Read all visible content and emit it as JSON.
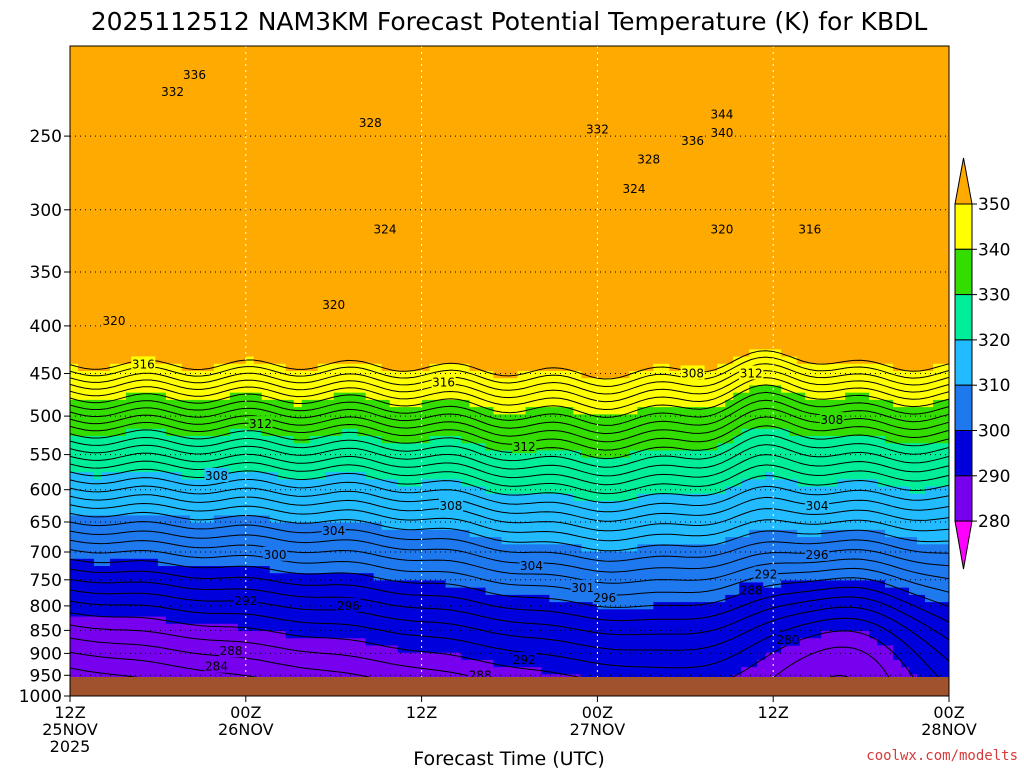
{
  "chart_data": {
    "type": "contour",
    "title": "2025112512 NAM3KM Forecast Potential Temperature (K) for KBDL",
    "xlabel": "Forecast Time (UTC)",
    "ylabel": "",
    "y_axis": {
      "ticks": [
        "250",
        "300",
        "350",
        "400",
        "450",
        "500",
        "550",
        "600",
        "650",
        "700",
        "750",
        "800",
        "850",
        "900",
        "950",
        "1000"
      ],
      "range": [
        200,
        1000
      ],
      "scale": "log"
    },
    "x_axis": {
      "ticks": [
        {
          "line1": "12Z",
          "line2": "25NOV",
          "line3": "2025",
          "hour": 0
        },
        {
          "line1": "00Z",
          "line2": "26NOV",
          "line3": "",
          "hour": 12
        },
        {
          "line1": "12Z",
          "line2": "",
          "line3": "",
          "hour": 24
        },
        {
          "line1": "00Z",
          "line2": "27NOV",
          "line3": "",
          "hour": 36
        },
        {
          "line1": "12Z",
          "line2": "",
          "line3": "",
          "hour": 48
        },
        {
          "line1": "00Z",
          "line2": "28NOV",
          "line3": "",
          "hour": 60
        }
      ],
      "range_hours": [
        0,
        60
      ]
    },
    "colorbar": {
      "labels": [
        "350",
        "340",
        "330",
        "320",
        "310",
        "300",
        "290",
        "280"
      ],
      "bands": [
        {
          "lo": 340,
          "hi": 350,
          "color": "#ffff00"
        },
        {
          "lo": 330,
          "hi": 340,
          "color": "#33dd00"
        },
        {
          "lo": 320,
          "hi": 330,
          "color": "#00ee99"
        },
        {
          "lo": 310,
          "hi": 320,
          "color": "#22bbff"
        },
        {
          "lo": 300,
          "hi": 310,
          "color": "#1e78ee"
        },
        {
          "lo": 290,
          "hi": 300,
          "color": "#0000dd"
        },
        {
          "lo": 280,
          "hi": 290,
          "color": "#7700ee"
        },
        {
          "lo": 270,
          "hi": 280,
          "color": "#cc00ff"
        }
      ],
      "over_color": "#ffaa00",
      "under_color": "#ff00ff"
    },
    "ground_color": "#a0522d",
    "grid": true,
    "contour_labels": [
      {
        "text": "336",
        "hour": 8.5,
        "pressure": 215
      },
      {
        "text": "332",
        "hour": 7.0,
        "pressure": 224
      },
      {
        "text": "328",
        "hour": 20.5,
        "pressure": 242
      },
      {
        "text": "332",
        "hour": 36.0,
        "pressure": 246
      },
      {
        "text": "344",
        "hour": 44.5,
        "pressure": 237
      },
      {
        "text": "340",
        "hour": 44.5,
        "pressure": 248
      },
      {
        "text": "336",
        "hour": 42.5,
        "pressure": 253
      },
      {
        "text": "328",
        "hour": 39.5,
        "pressure": 265
      },
      {
        "text": "324",
        "hour": 38.5,
        "pressure": 285
      },
      {
        "text": "324",
        "hour": 21.5,
        "pressure": 315
      },
      {
        "text": "320",
        "hour": 44.5,
        "pressure": 315
      },
      {
        "text": "316",
        "hour": 50.5,
        "pressure": 315
      },
      {
        "text": "320",
        "hour": 18.0,
        "pressure": 380
      },
      {
        "text": "320",
        "hour": 3.0,
        "pressure": 395
      },
      {
        "text": "316",
        "hour": 5.0,
        "pressure": 440
      },
      {
        "text": "316",
        "hour": 25.5,
        "pressure": 460
      },
      {
        "text": "308",
        "hour": 42.5,
        "pressure": 450
      },
      {
        "text": "312",
        "hour": 46.5,
        "pressure": 450
      },
      {
        "text": "308",
        "hour": 52.0,
        "pressure": 505
      },
      {
        "text": "312",
        "hour": 13.0,
        "pressure": 510
      },
      {
        "text": "312",
        "hour": 31.0,
        "pressure": 540
      },
      {
        "text": "308",
        "hour": 10.0,
        "pressure": 580
      },
      {
        "text": "308",
        "hour": 26.0,
        "pressure": 625
      },
      {
        "text": "304",
        "hour": 51.0,
        "pressure": 625
      },
      {
        "text": "304",
        "hour": 18.0,
        "pressure": 665
      },
      {
        "text": "296",
        "hour": 51.0,
        "pressure": 705
      },
      {
        "text": "300",
        "hour": 14.0,
        "pressure": 705
      },
      {
        "text": "304",
        "hour": 31.5,
        "pressure": 725
      },
      {
        "text": "292",
        "hour": 47.5,
        "pressure": 740
      },
      {
        "text": "301",
        "hour": 35.0,
        "pressure": 765
      },
      {
        "text": "288",
        "hour": 46.5,
        "pressure": 770
      },
      {
        "text": "296",
        "hour": 36.5,
        "pressure": 785
      },
      {
        "text": "292",
        "hour": 12.0,
        "pressure": 790
      },
      {
        "text": "296",
        "hour": 19.0,
        "pressure": 800
      },
      {
        "text": "280",
        "hour": 49.0,
        "pressure": 870
      },
      {
        "text": "288",
        "hour": 11.0,
        "pressure": 895
      },
      {
        "text": "292",
        "hour": 31.0,
        "pressure": 915
      },
      {
        "text": "284",
        "hour": 10.0,
        "pressure": 930
      },
      {
        "text": "288",
        "hour": 28.0,
        "pressure": 950
      }
    ]
  },
  "credit": "coolwx.com/modelts"
}
